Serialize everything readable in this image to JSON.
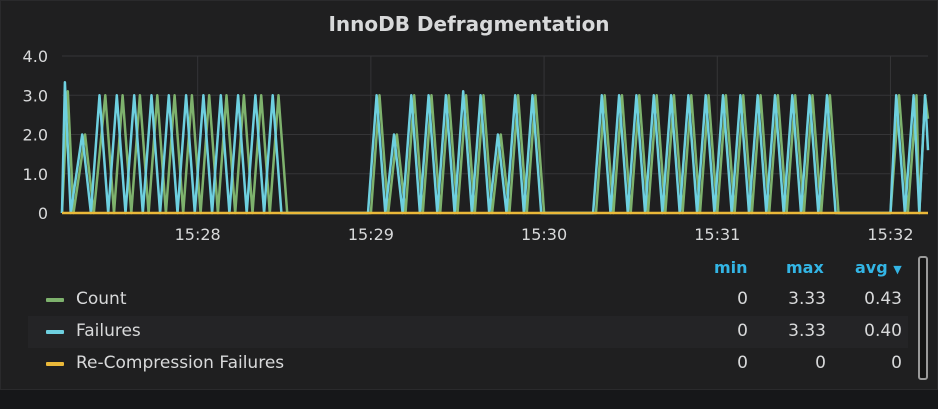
{
  "panel": {
    "title": "InnoDB Defragmentation"
  },
  "chart_data": {
    "type": "line",
    "title": "InnoDB Defragmentation",
    "xlabel": "",
    "ylabel": "",
    "ylim": [
      0,
      4
    ],
    "yticks": [
      "0",
      "1.0",
      "2.0",
      "3.0",
      "4.0"
    ],
    "xticks": [
      "15:28",
      "15:29",
      "15:30",
      "15:31",
      "15:32"
    ],
    "grid": true,
    "legend_position": "bottom",
    "series": [
      {
        "name": "Count",
        "color": "#7eb26d",
        "points": [
          [
            "15:27:13",
            0
          ],
          [
            "15:27:15",
            3.1
          ],
          [
            "15:27:17",
            0
          ],
          [
            "15:27:21",
            2.0
          ],
          [
            "15:27:24",
            0
          ],
          [
            "15:27:28",
            3.0
          ],
          [
            "15:27:31",
            0
          ],
          [
            "15:27:34",
            3.0
          ],
          [
            "15:27:37",
            0
          ],
          [
            "15:27:40",
            3.0
          ],
          [
            "15:27:43",
            0
          ],
          [
            "15:27:46",
            3.0
          ],
          [
            "15:27:49",
            0
          ],
          [
            "15:27:52",
            3.0
          ],
          [
            "15:27:55",
            0
          ],
          [
            "15:27:58",
            3.0
          ],
          [
            "15:28:01",
            0
          ],
          [
            "15:28:04",
            3.0
          ],
          [
            "15:28:07",
            0
          ],
          [
            "15:28:10",
            3.0
          ],
          [
            "15:28:13",
            0
          ],
          [
            "15:28:16",
            3.0
          ],
          [
            "15:28:19",
            0
          ],
          [
            "15:28:22",
            3.0
          ],
          [
            "15:28:25",
            0
          ],
          [
            "15:28:28",
            3.0
          ],
          [
            "15:28:31",
            0
          ],
          [
            "15:29:00",
            0
          ],
          [
            "15:29:03",
            3.0
          ],
          [
            "15:29:06",
            0
          ],
          [
            "15:29:09",
            2.0
          ],
          [
            "15:29:12",
            0
          ],
          [
            "15:29:15",
            3.0
          ],
          [
            "15:29:18",
            0
          ],
          [
            "15:29:21",
            3.0
          ],
          [
            "15:29:24",
            0
          ],
          [
            "15:29:27",
            3.0
          ],
          [
            "15:29:30",
            0
          ],
          [
            "15:29:33",
            3.0
          ],
          [
            "15:29:36",
            0
          ],
          [
            "15:29:39",
            3.0
          ],
          [
            "15:29:42",
            0
          ],
          [
            "15:29:45",
            2.0
          ],
          [
            "15:29:48",
            0
          ],
          [
            "15:29:51",
            3.0
          ],
          [
            "15:29:54",
            0
          ],
          [
            "15:29:57",
            3.0
          ],
          [
            "15:30:00",
            0
          ],
          [
            "15:30:18",
            0
          ],
          [
            "15:30:21",
            3.0
          ],
          [
            "15:30:24",
            0
          ],
          [
            "15:30:27",
            3.0
          ],
          [
            "15:30:30",
            0
          ],
          [
            "15:30:33",
            3.0
          ],
          [
            "15:30:36",
            0
          ],
          [
            "15:30:39",
            3.0
          ],
          [
            "15:30:42",
            0
          ],
          [
            "15:30:45",
            3.0
          ],
          [
            "15:30:48",
            0
          ],
          [
            "15:30:51",
            3.0
          ],
          [
            "15:30:54",
            0
          ],
          [
            "15:30:57",
            3.0
          ],
          [
            "15:31:00",
            0
          ],
          [
            "15:31:03",
            3.0
          ],
          [
            "15:31:06",
            0
          ],
          [
            "15:31:09",
            3.0
          ],
          [
            "15:31:12",
            0
          ],
          [
            "15:31:15",
            3.0
          ],
          [
            "15:31:18",
            0
          ],
          [
            "15:31:21",
            3.0
          ],
          [
            "15:31:24",
            0
          ],
          [
            "15:31:27",
            3.0
          ],
          [
            "15:31:30",
            0
          ],
          [
            "15:31:33",
            3.0
          ],
          [
            "15:31:36",
            0
          ],
          [
            "15:31:39",
            3.0
          ],
          [
            "15:31:42",
            0
          ],
          [
            "15:32:00",
            0
          ],
          [
            "15:32:03",
            3.0
          ],
          [
            "15:32:06",
            0
          ],
          [
            "15:32:09",
            3.0
          ],
          [
            "15:32:10",
            0
          ],
          [
            "15:32:12",
            3.0
          ],
          [
            "15:32:13",
            2.4
          ]
        ]
      },
      {
        "name": "Failures",
        "color": "#6ed0e0",
        "points": [
          [
            "15:27:13",
            0
          ],
          [
            "15:27:14",
            3.33
          ],
          [
            "15:27:16",
            0
          ],
          [
            "15:27:20",
            2.0
          ],
          [
            "15:27:23",
            0
          ],
          [
            "15:27:26",
            3.0
          ],
          [
            "15:27:29",
            0
          ],
          [
            "15:27:32",
            3.0
          ],
          [
            "15:27:35",
            0
          ],
          [
            "15:27:38",
            3.0
          ],
          [
            "15:27:41",
            0
          ],
          [
            "15:27:44",
            3.0
          ],
          [
            "15:27:47",
            0
          ],
          [
            "15:27:50",
            3.0
          ],
          [
            "15:27:53",
            0
          ],
          [
            "15:27:56",
            3.0
          ],
          [
            "15:27:59",
            0
          ],
          [
            "15:28:02",
            3.0
          ],
          [
            "15:28:05",
            0
          ],
          [
            "15:28:08",
            3.0
          ],
          [
            "15:28:11",
            0
          ],
          [
            "15:28:14",
            3.0
          ],
          [
            "15:28:17",
            0
          ],
          [
            "15:28:20",
            3.0
          ],
          [
            "15:28:23",
            0
          ],
          [
            "15:28:26",
            3.0
          ],
          [
            "15:28:29",
            0
          ],
          [
            "15:28:59",
            0
          ],
          [
            "15:29:02",
            3.0
          ],
          [
            "15:29:05",
            0
          ],
          [
            "15:29:08",
            2.0
          ],
          [
            "15:29:11",
            0
          ],
          [
            "15:29:14",
            3.0
          ],
          [
            "15:29:17",
            0
          ],
          [
            "15:29:20",
            3.0
          ],
          [
            "15:29:23",
            0
          ],
          [
            "15:29:26",
            3.0
          ],
          [
            "15:29:29",
            0
          ],
          [
            "15:29:32",
            3.1
          ],
          [
            "15:29:35",
            0
          ],
          [
            "15:29:38",
            3.0
          ],
          [
            "15:29:41",
            0
          ],
          [
            "15:29:44",
            2.0
          ],
          [
            "15:29:47",
            0
          ],
          [
            "15:29:50",
            3.0
          ],
          [
            "15:29:53",
            0
          ],
          [
            "15:29:56",
            3.0
          ],
          [
            "15:29:59",
            0
          ],
          [
            "15:30:17",
            0
          ],
          [
            "15:30:20",
            3.0
          ],
          [
            "15:30:23",
            0
          ],
          [
            "15:30:26",
            3.0
          ],
          [
            "15:30:29",
            0
          ],
          [
            "15:30:32",
            3.0
          ],
          [
            "15:30:35",
            0
          ],
          [
            "15:30:38",
            3.0
          ],
          [
            "15:30:41",
            0
          ],
          [
            "15:30:44",
            3.0
          ],
          [
            "15:30:47",
            0
          ],
          [
            "15:30:50",
            3.0
          ],
          [
            "15:30:53",
            0
          ],
          [
            "15:30:56",
            3.0
          ],
          [
            "15:30:59",
            0
          ],
          [
            "15:31:02",
            3.0
          ],
          [
            "15:31:05",
            0
          ],
          [
            "15:31:08",
            3.0
          ],
          [
            "15:31:11",
            0
          ],
          [
            "15:31:14",
            3.0
          ],
          [
            "15:31:17",
            0
          ],
          [
            "15:31:20",
            3.0
          ],
          [
            "15:31:23",
            0
          ],
          [
            "15:31:26",
            3.0
          ],
          [
            "15:31:29",
            0
          ],
          [
            "15:31:32",
            3.0
          ],
          [
            "15:31:35",
            0
          ],
          [
            "15:31:38",
            3.0
          ],
          [
            "15:31:41",
            0
          ],
          [
            "15:32:00",
            0
          ],
          [
            "15:32:02",
            3.0
          ],
          [
            "15:32:05",
            0
          ],
          [
            "15:32:08",
            3.0
          ],
          [
            "15:32:10",
            0
          ],
          [
            "15:32:12",
            3.0
          ],
          [
            "15:32:13",
            1.6
          ]
        ]
      },
      {
        "name": "Re-Compression Failures",
        "color": "#eab839",
        "points": [
          [
            "15:27:13",
            0
          ],
          [
            "15:32:13",
            0
          ]
        ]
      }
    ]
  },
  "legend": {
    "headers": {
      "min": "min",
      "max": "max",
      "avg": "avg",
      "sort_icon": "caret-down-icon"
    },
    "rows": [
      {
        "name": "Count",
        "color": "#7eb26d",
        "min": "0",
        "max": "3.33",
        "avg": "0.43"
      },
      {
        "name": "Failures",
        "color": "#6ed0e0",
        "min": "0",
        "max": "3.33",
        "avg": "0.40"
      },
      {
        "name": "Re-Compression Failures",
        "color": "#eab839",
        "min": "0",
        "max": "0",
        "avg": "0"
      }
    ]
  }
}
